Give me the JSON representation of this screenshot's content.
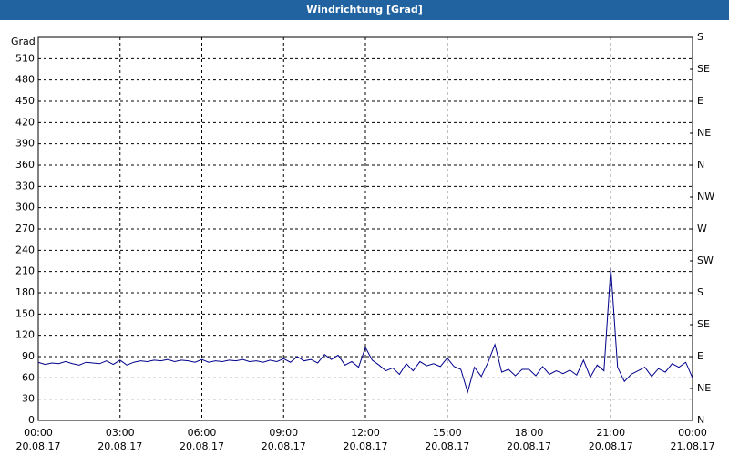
{
  "chart_data": {
    "type": "line",
    "title": "Windrichtung [Grad]",
    "ylabel": "Grad",
    "color": "#00008b",
    "grid": true,
    "x": [
      0,
      0.25,
      0.5,
      0.75,
      1,
      1.25,
      1.5,
      1.75,
      2,
      2.25,
      2.5,
      2.75,
      3,
      3.25,
      3.5,
      3.75,
      4,
      4.25,
      4.5,
      4.75,
      5,
      5.25,
      5.5,
      5.75,
      6,
      6.25,
      6.5,
      6.75,
      7,
      7.25,
      7.5,
      7.75,
      8,
      8.25,
      8.5,
      8.75,
      9,
      9.25,
      9.5,
      9.75,
      10,
      10.25,
      10.5,
      10.75,
      11,
      11.25,
      11.5,
      11.75,
      12,
      12.25,
      12.5,
      12.75,
      13,
      13.25,
      13.5,
      13.75,
      14,
      14.25,
      14.5,
      14.75,
      15,
      15.25,
      15.5,
      15.75,
      16,
      16.25,
      16.5,
      16.75,
      17,
      17.25,
      17.5,
      17.75,
      18,
      18.25,
      18.5,
      18.75,
      19,
      19.25,
      19.5,
      19.75,
      20,
      20.25,
      20.5,
      20.75,
      21,
      21.25,
      21.5,
      21.75,
      22,
      22.25,
      22.5,
      22.75,
      23,
      23.25,
      23.5,
      23.75,
      24
    ],
    "values": [
      82,
      79,
      81,
      80,
      83,
      80,
      78,
      82,
      81,
      80,
      84,
      79,
      85,
      78,
      82,
      84,
      83,
      85,
      84,
      86,
      83,
      85,
      84,
      82,
      86,
      82,
      84,
      83,
      85,
      84,
      86,
      83,
      84,
      82,
      85,
      83,
      87,
      82,
      90,
      84,
      86,
      81,
      93,
      86,
      92,
      78,
      83,
      75,
      103,
      85,
      78,
      70,
      74,
      65,
      80,
      70,
      83,
      77,
      80,
      76,
      88,
      76,
      72,
      40,
      75,
      62,
      82,
      107,
      68,
      72,
      63,
      72,
      72,
      63,
      76,
      65,
      70,
      66,
      71,
      64,
      85,
      61,
      78,
      70,
      215,
      75,
      55,
      65,
      70,
      75,
      62,
      73,
      68,
      80,
      75,
      82,
      60
    ],
    "xlim": [
      0,
      24
    ],
    "xticks": [
      {
        "value": 0,
        "label": "00:00",
        "date": "20.08.17"
      },
      {
        "value": 3,
        "label": "03:00",
        "date": "20.08.17"
      },
      {
        "value": 6,
        "label": "06:00",
        "date": "20.08.17"
      },
      {
        "value": 9,
        "label": "09:00",
        "date": "20.08.17"
      },
      {
        "value": 12,
        "label": "12:00",
        "date": "20.08.17"
      },
      {
        "value": 15,
        "label": "15:00",
        "date": "20.08.17"
      },
      {
        "value": 18,
        "label": "18:00",
        "date": "20.08.17"
      },
      {
        "value": 21,
        "label": "21:00",
        "date": "20.08.17"
      },
      {
        "value": 24,
        "label": "00:00",
        "date": "21.08.17"
      }
    ],
    "ylim": [
      0,
      540
    ],
    "yticks": [
      0,
      30,
      60,
      90,
      120,
      150,
      180,
      210,
      240,
      270,
      300,
      330,
      360,
      390,
      420,
      450,
      480,
      510
    ],
    "y2lim": [
      0,
      540
    ],
    "y2ticks": [
      {
        "value": 0,
        "label": "N"
      },
      {
        "value": 45,
        "label": "NE"
      },
      {
        "value": 90,
        "label": "E"
      },
      {
        "value": 135,
        "label": "SE"
      },
      {
        "value": 180,
        "label": "S"
      },
      {
        "value": 225,
        "label": "SW"
      },
      {
        "value": 270,
        "label": "W"
      },
      {
        "value": 315,
        "label": "NW"
      },
      {
        "value": 360,
        "label": "N"
      },
      {
        "value": 405,
        "label": "NE"
      },
      {
        "value": 450,
        "label": "E"
      },
      {
        "value": 495,
        "label": "SE"
      },
      {
        "value": 540,
        "label": "S"
      }
    ]
  }
}
